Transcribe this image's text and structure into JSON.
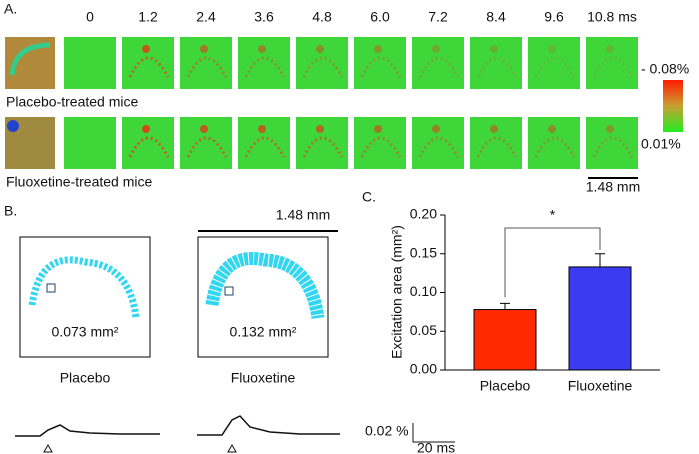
{
  "panel_a": {
    "label": "A.",
    "times": [
      "0",
      "1.2",
      "2.4",
      "3.6",
      "4.8",
      "6.0",
      "7.2",
      "8.4",
      "9.6",
      "10.8 ms"
    ],
    "rows": [
      {
        "label": "Placebo-treated mice"
      },
      {
        "label": "Fluoxetine-treated mice"
      }
    ],
    "colorbar": {
      "top": "- 0.08%",
      "bottom": "0.01%"
    },
    "scale_bar": "1.48 mm"
  },
  "panel_b": {
    "label": "B.",
    "scale_bar": "1.48 mm",
    "groups": [
      {
        "name": "Placebo",
        "area": "0.073 mm²"
      },
      {
        "name": "Fluoxetine",
        "area": "0.132 mm²"
      }
    ],
    "trace_scale": {
      "y": "0.02 %",
      "x": "20 ms"
    }
  },
  "chart_data": {
    "type": "bar",
    "label": "C.",
    "ylabel": "Excitation area (mm²)",
    "categories": [
      "Placebo",
      "Fluoxetine"
    ],
    "values": [
      0.078,
      0.133
    ],
    "errors": [
      0.008,
      0.017
    ],
    "colors": [
      "#ff2a00",
      "#3b3bf2"
    ],
    "ylim": [
      0,
      0.2
    ],
    "yticks": [
      {
        "value": 0,
        "label": "0.00"
      },
      {
        "value": 0.05,
        "label": "0.05"
      },
      {
        "value": 0.1,
        "label": "0.10"
      },
      {
        "value": 0.15,
        "label": "0.15"
      },
      {
        "value": 0.2,
        "label": "0.20"
      }
    ],
    "annotation": "*"
  }
}
